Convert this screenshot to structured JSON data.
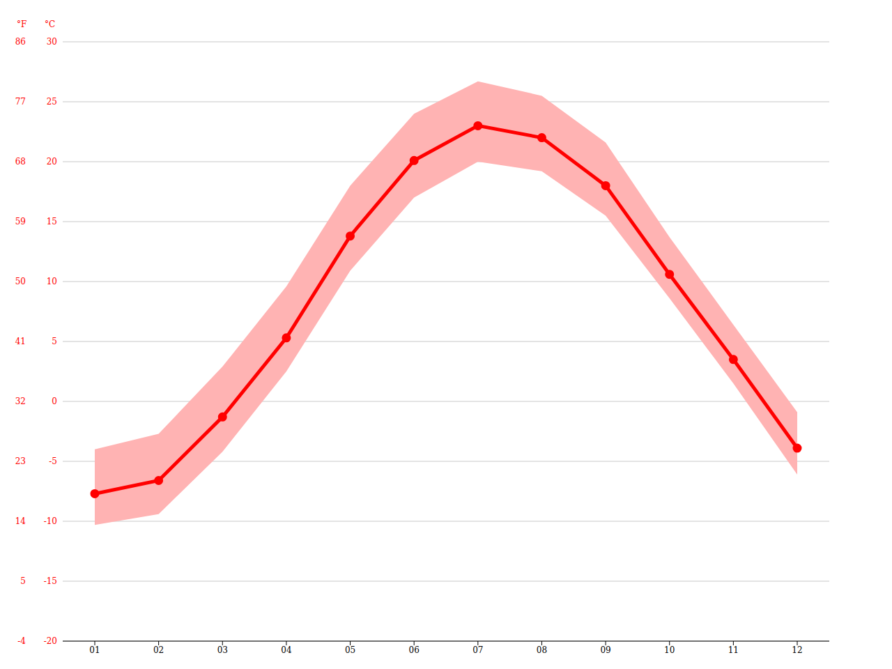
{
  "chart_data": {
    "type": "line",
    "categories": [
      "01",
      "02",
      "03",
      "04",
      "05",
      "06",
      "07",
      "08",
      "09",
      "10",
      "11",
      "12"
    ],
    "series": [
      {
        "type": "area",
        "color": "#ffb3b3",
        "low": [
          -10.3,
          -9.4,
          -4.2,
          2.5,
          10.9,
          17.0,
          20.0,
          19.2,
          15.5,
          8.6,
          1.5,
          -6.1
        ],
        "high": [
          -4.0,
          -2.7,
          2.9,
          9.6,
          18.0,
          24.0,
          26.7,
          25.5,
          21.6,
          13.7,
          6.4,
          -0.9
        ]
      },
      {
        "type": "line",
        "color": "#ff0000",
        "marker": "circle",
        "values": [
          -7.7,
          -6.6,
          -1.3,
          5.3,
          13.8,
          20.1,
          23.0,
          22.0,
          18.0,
          10.6,
          3.5,
          -3.9
        ]
      }
    ],
    "y_label": "°C",
    "ylim": [
      -20,
      30
    ],
    "yticks": [
      -20,
      -15,
      -10,
      -5,
      0,
      5,
      10,
      15,
      20,
      25,
      30
    ],
    "y2_label": "°F",
    "y2lim": [
      -4,
      86
    ],
    "y2ticks": [
      -4,
      5,
      14,
      23,
      32,
      41,
      50,
      59,
      68,
      77,
      86
    ],
    "grid": true
  }
}
